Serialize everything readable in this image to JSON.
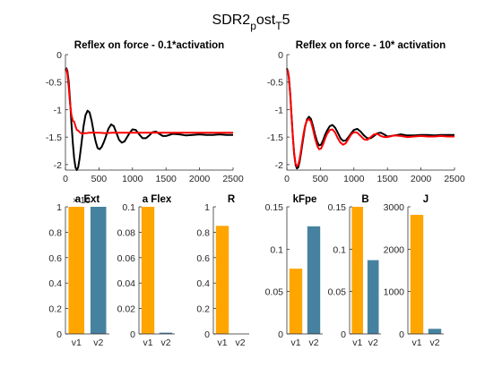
{
  "figure": {
    "title_main": "SDR2",
    "title_sub1": "p",
    "title_mid": "ost",
    "title_sub2": "T",
    "title_end": "5"
  },
  "colors": {
    "black_line": "#000000",
    "red_line": "#ff0000",
    "v1_bar": "#ffa500",
    "v2_bar": "#4682a0",
    "axis": "#262626"
  },
  "chart_data": [
    {
      "type": "line",
      "title": "Reflex on force - 0.1*activation",
      "xlim": [
        0,
        2500
      ],
      "ylim": [
        -2.1,
        0
      ],
      "xticks": [
        0,
        500,
        1000,
        1500,
        2000,
        2500
      ],
      "yticks": [
        0,
        -0.5,
        -1,
        -1.5,
        -2
      ],
      "series": [
        {
          "color": "black",
          "x": [
            0,
            15,
            30,
            50,
            70,
            90,
            110,
            130,
            150,
            170,
            190,
            210,
            240,
            270,
            300,
            330,
            360,
            390,
            420,
            450,
            480,
            510,
            540,
            570,
            600,
            640,
            680,
            720,
            760,
            800,
            840,
            880,
            920,
            960,
            1000,
            1050,
            1100,
            1150,
            1200,
            1250,
            1300,
            1350,
            1400,
            1450,
            1500,
            1600,
            1700,
            1800,
            1900,
            2000,
            2100,
            2200,
            2300,
            2400,
            2500
          ],
          "y": [
            -0.28,
            -0.25,
            -0.3,
            -0.5,
            -0.85,
            -1.25,
            -1.6,
            -1.88,
            -2.05,
            -2.1,
            -2.05,
            -1.9,
            -1.6,
            -1.3,
            -1.1,
            -1.02,
            -1.05,
            -1.2,
            -1.4,
            -1.58,
            -1.7,
            -1.72,
            -1.68,
            -1.6,
            -1.5,
            -1.35,
            -1.27,
            -1.3,
            -1.42,
            -1.55,
            -1.6,
            -1.58,
            -1.5,
            -1.42,
            -1.36,
            -1.37,
            -1.45,
            -1.52,
            -1.52,
            -1.47,
            -1.41,
            -1.4,
            -1.44,
            -1.48,
            -1.48,
            -1.44,
            -1.45,
            -1.47,
            -1.46,
            -1.45,
            -1.46,
            -1.46,
            -1.45,
            -1.46,
            -1.46
          ]
        },
        {
          "color": "red",
          "x": [
            0,
            15,
            30,
            50,
            70,
            90,
            110,
            130,
            150,
            170,
            190,
            220,
            250,
            280,
            310,
            350,
            400,
            500,
            600,
            700,
            800,
            1000,
            1500,
            2000,
            2500
          ],
          "y": [
            -0.3,
            -0.27,
            -0.35,
            -0.6,
            -0.9,
            -1.1,
            -1.2,
            -1.22,
            -1.3,
            -1.37,
            -1.38,
            -1.42,
            -1.44,
            -1.43,
            -1.43,
            -1.42,
            -1.42,
            -1.42,
            -1.43,
            -1.42,
            -1.42,
            -1.42,
            -1.42,
            -1.42,
            -1.42
          ]
        }
      ]
    },
    {
      "type": "line",
      "title": "Reflex on force - 10* activation",
      "xlim": [
        0,
        2500
      ],
      "ylim": [
        -2.1,
        0
      ],
      "xticks": [
        0,
        500,
        1000,
        1500,
        2000,
        2500
      ],
      "yticks": [
        0,
        -0.5,
        -1,
        -1.5,
        -2
      ],
      "series": [
        {
          "color": "black",
          "x": [
            0,
            15,
            30,
            50,
            70,
            90,
            110,
            130,
            150,
            170,
            190,
            210,
            240,
            270,
            300,
            330,
            360,
            390,
            420,
            450,
            480,
            510,
            540,
            570,
            600,
            640,
            680,
            720,
            760,
            800,
            840,
            880,
            920,
            960,
            1000,
            1050,
            1100,
            1150,
            1200,
            1250,
            1300,
            1350,
            1400,
            1450,
            1500,
            1600,
            1700,
            1800,
            1900,
            2000,
            2100,
            2200,
            2300,
            2400,
            2500
          ],
          "y": [
            -0.25,
            -0.3,
            -0.4,
            -0.7,
            -1.1,
            -1.5,
            -1.82,
            -2.0,
            -2.07,
            -2.05,
            -1.95,
            -1.8,
            -1.55,
            -1.32,
            -1.18,
            -1.13,
            -1.17,
            -1.3,
            -1.45,
            -1.58,
            -1.65,
            -1.64,
            -1.56,
            -1.46,
            -1.38,
            -1.3,
            -1.28,
            -1.33,
            -1.42,
            -1.52,
            -1.57,
            -1.56,
            -1.5,
            -1.43,
            -1.37,
            -1.35,
            -1.4,
            -1.47,
            -1.52,
            -1.52,
            -1.48,
            -1.43,
            -1.42,
            -1.45,
            -1.49,
            -1.47,
            -1.45,
            -1.47,
            -1.47,
            -1.46,
            -1.46,
            -1.47,
            -1.46,
            -1.46,
            -1.46
          ]
        },
        {
          "color": "red",
          "x": [
            0,
            15,
            30,
            50,
            70,
            90,
            110,
            130,
            150,
            170,
            190,
            210,
            240,
            270,
            300,
            330,
            360,
            390,
            420,
            450,
            480,
            510,
            540,
            570,
            600,
            640,
            680,
            720,
            760,
            800,
            840,
            880,
            920,
            960,
            1000,
            1050,
            1100,
            1150,
            1200,
            1250,
            1300,
            1350,
            1400,
            1450,
            1500,
            1600,
            1700,
            1800,
            1900,
            2000,
            2100,
            2200,
            2300,
            2400,
            2500
          ],
          "y": [
            -0.27,
            -0.3,
            -0.42,
            -0.72,
            -1.12,
            -1.5,
            -1.8,
            -1.98,
            -2.03,
            -2.0,
            -1.9,
            -1.75,
            -1.5,
            -1.3,
            -1.2,
            -1.17,
            -1.22,
            -1.36,
            -1.52,
            -1.65,
            -1.72,
            -1.71,
            -1.63,
            -1.53,
            -1.44,
            -1.37,
            -1.36,
            -1.42,
            -1.52,
            -1.6,
            -1.64,
            -1.61,
            -1.53,
            -1.45,
            -1.41,
            -1.42,
            -1.48,
            -1.54,
            -1.55,
            -1.5,
            -1.45,
            -1.44,
            -1.48,
            -1.5,
            -1.5,
            -1.47,
            -1.48,
            -1.5,
            -1.49,
            -1.48,
            -1.49,
            -1.49,
            -1.48,
            -1.49,
            -1.49
          ]
        }
      ]
    },
    {
      "type": "bar",
      "title": "a Ext",
      "categories": [
        "v1",
        "v2"
      ],
      "values": [
        1.0,
        1.0
      ],
      "ylim": [
        0,
        1
      ],
      "yticks": [
        0,
        0.2,
        0.4,
        0.6,
        0.8,
        1
      ],
      "ytick_labels": [
        "0",
        "0.2",
        "0.4",
        "0.6",
        "0.8",
        "1"
      ],
      "exponent_label": "× 10"
    },
    {
      "type": "bar",
      "title": "a Flex",
      "categories": [
        "v1",
        "v2"
      ],
      "values": [
        0.1,
        0.001
      ],
      "ylim": [
        0,
        0.1
      ],
      "yticks": [
        0,
        0.02,
        0.04,
        0.06,
        0.08,
        0.1
      ],
      "ytick_labels": [
        "0",
        "0.02",
        "0.04",
        "0.06",
        "0.08",
        "0.1"
      ]
    },
    {
      "type": "bar",
      "title": "R",
      "categories": [
        "v1",
        "v2"
      ],
      "values": [
        0.85,
        0
      ],
      "ylim": [
        0,
        1
      ],
      "yticks": [
        0,
        0.2,
        0.4,
        0.6,
        0.8,
        1
      ],
      "ytick_labels": [
        "0",
        "0.2",
        "0.4",
        "0.6",
        "0.8",
        "1"
      ]
    },
    {
      "type": "bar",
      "title": "kFpe",
      "categories": [
        "v1",
        "v2"
      ],
      "values": [
        0.077,
        0.127
      ],
      "ylim": [
        0,
        0.15
      ],
      "yticks": [
        0,
        0.05,
        0.1,
        0.15
      ],
      "ytick_labels": [
        "0",
        "0.05",
        "0.1",
        "0.15"
      ]
    },
    {
      "type": "bar",
      "title": "B",
      "categories": [
        "v1",
        "v2"
      ],
      "values": [
        0.15,
        0.087
      ],
      "ylim": [
        0,
        0.15
      ],
      "yticks": [
        0,
        0.05,
        0.1,
        0.15
      ],
      "ytick_labels": [
        "0",
        "0.05",
        "0.1",
        "0.15"
      ]
    },
    {
      "type": "bar",
      "title": "J",
      "categories": [
        "v1",
        "v2"
      ],
      "values": [
        2810,
        120
      ],
      "ylim": [
        0,
        3000
      ],
      "yticks": [
        0,
        1000,
        2000,
        3000
      ],
      "ytick_labels": [
        "0",
        "1000",
        "2000",
        "3000"
      ]
    }
  ]
}
